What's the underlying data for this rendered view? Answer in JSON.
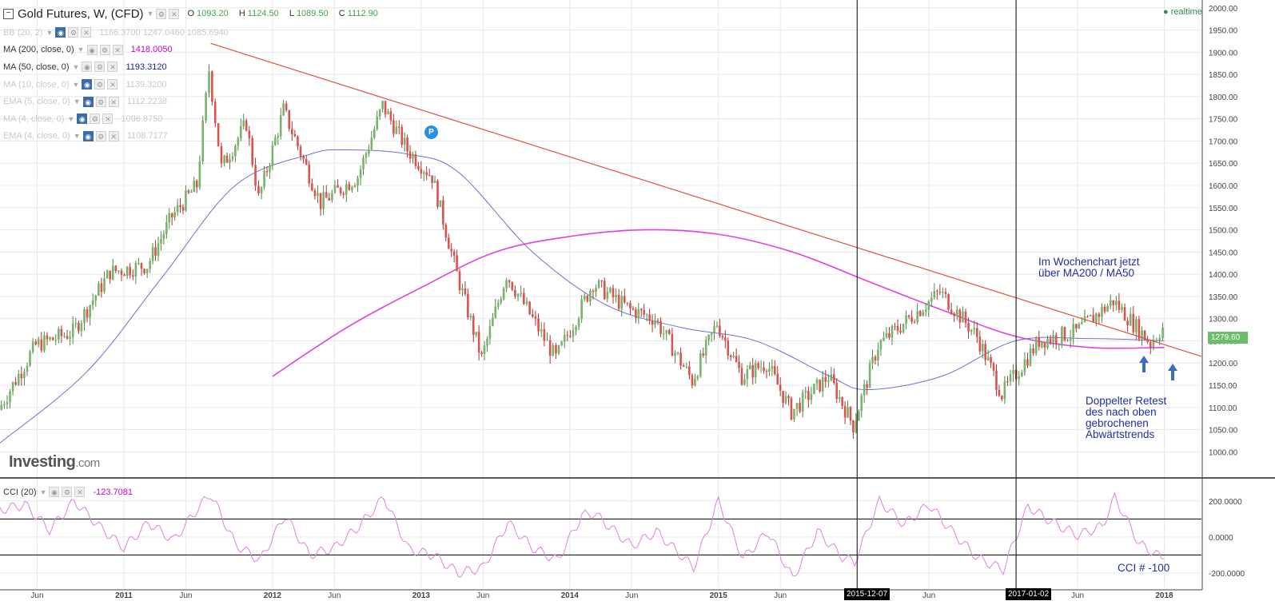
{
  "header": {
    "title": "Gold Futures, W, (CFD)",
    "ohlc": [
      {
        "label": "O",
        "value": "1093.20"
      },
      {
        "label": "H",
        "value": "1124.50"
      },
      {
        "label": "L",
        "value": "1089.50"
      },
      {
        "label": "C",
        "value": "1112.90"
      }
    ],
    "realtime": "realtime"
  },
  "indicators": [
    {
      "label": "BB (20, 2)",
      "values": "1166.3700 1247.0460 1085.6940",
      "dim": true
    },
    {
      "label": "MA (200, close, 0)",
      "values": "1418.0050",
      "dim": false,
      "color": "#cc00cc"
    },
    {
      "label": "MA (50, close, 0)",
      "values": "1193.3120",
      "dim": false,
      "color": "#1a1aa0"
    },
    {
      "label": "MA (10, close, 0)",
      "values": "1139.3200",
      "dim": true
    },
    {
      "label": "EMA (5, close, 0)",
      "values": "1112.2238",
      "dim": true
    },
    {
      "label": "MA (4, close, 0)",
      "values": "1096.8750",
      "dim": true
    },
    {
      "label": "EMA (4, close, 0)",
      "values": "1108.7177",
      "dim": true
    }
  ],
  "cci_legend": {
    "label": "CCI (20)",
    "value": "-123.7081"
  },
  "logo": {
    "main": "Investing",
    "suffix": ".com"
  },
  "annotations": {
    "weekly": [
      "Im Wochenchart jetzt",
      "über MA200 / MA50"
    ],
    "retest": [
      "Doppelter Retest",
      "des nach oben",
      "gebrochenen",
      "Abwärtstrends"
    ],
    "cci": "CCI # -100",
    "marker": "P"
  },
  "price_tag": "1279.60",
  "date_tags": [
    "2015-12-07",
    "2017-01-02"
  ],
  "colors": {
    "up": "#78b36b",
    "down": "#d9534f",
    "ma200": "#e040e0",
    "ma50": "#6f6fcf",
    "trendline": "#e0503c",
    "cci": "#e080e0",
    "grid": "#e8e8e8"
  },
  "chart_data": {
    "type": "candlestick",
    "title": "Gold Futures, W, (CFD)",
    "y_axis": {
      "ylim": [
        970,
        2005
      ],
      "ticks": [
        1000,
        1050,
        1100,
        1150,
        1200,
        1250,
        1300,
        1350,
        1400,
        1450,
        1500,
        1550,
        1600,
        1650,
        1700,
        1750,
        1800,
        1850,
        1900,
        1950,
        2000
      ],
      "tick_labels": [
        "1000.00",
        "1050.00",
        "1100.00",
        "1150.00",
        "1200.00",
        "1250.00",
        "1300.00",
        "1350.00",
        "1400.00",
        "1450.00",
        "1500.00",
        "1550.00",
        "1600.00",
        "1650.00",
        "1700.00",
        "1750.00",
        "1800.00",
        "1850.00",
        "1900.00",
        "1950.00",
        "2000.00"
      ]
    },
    "x_axis": {
      "range": [
        "2010-03",
        "2018-04"
      ],
      "ticks": [
        {
          "date": "2010-06",
          "label": "Jun"
        },
        {
          "date": "2011-01",
          "label": "2011"
        },
        {
          "date": "2011-06",
          "label": "Jun"
        },
        {
          "date": "2012-01",
          "label": "2012"
        },
        {
          "date": "2012-06",
          "label": "Jun"
        },
        {
          "date": "2013-01",
          "label": "2013"
        },
        {
          "date": "2013-06",
          "label": "Jun"
        },
        {
          "date": "2014-01",
          "label": "2014"
        },
        {
          "date": "2014-06",
          "label": "Jun"
        },
        {
          "date": "2015-01",
          "label": "2015"
        },
        {
          "date": "2015-06",
          "label": "Jun"
        },
        {
          "date": "2016-06",
          "label": "Jun"
        },
        {
          "date": "2017-06",
          "label": "Jun"
        },
        {
          "date": "2018-01",
          "label": "2018"
        }
      ]
    },
    "price_path": [
      [
        "2010-03",
        1095
      ],
      [
        "2010-06",
        1240
      ],
      [
        "2010-09",
        1270
      ],
      [
        "2010-12",
        1405
      ],
      [
        "2011-03",
        1420
      ],
      [
        "2011-05",
        1530
      ],
      [
        "2011-07",
        1600
      ],
      [
        "2011-08",
        1860
      ],
      [
        "2011-09",
        1640
      ],
      [
        "2011-11",
        1740
      ],
      [
        "2011-12",
        1570
      ],
      [
        "2012-02",
        1770
      ],
      [
        "2012-05",
        1560
      ],
      [
        "2012-08",
        1620
      ],
      [
        "2012-10",
        1780
      ],
      [
        "2012-12",
        1680
      ],
      [
        "2013-02",
        1620
      ],
      [
        "2013-04",
        1400
      ],
      [
        "2013-06",
        1210
      ],
      [
        "2013-08",
        1400
      ],
      [
        "2013-12",
        1210
      ],
      [
        "2014-03",
        1380
      ],
      [
        "2014-06",
        1320
      ],
      [
        "2014-08",
        1300
      ],
      [
        "2014-11",
        1160
      ],
      [
        "2015-01",
        1290
      ],
      [
        "2015-03",
        1170
      ],
      [
        "2015-05",
        1200
      ],
      [
        "2015-07",
        1090
      ],
      [
        "2015-10",
        1170
      ],
      [
        "2015-12",
        1060
      ],
      [
        "2016-02",
        1240
      ],
      [
        "2016-07",
        1360
      ],
      [
        "2016-10",
        1260
      ],
      [
        "2016-12",
        1130
      ],
      [
        "2017-03",
        1250
      ],
      [
        "2017-06",
        1270
      ],
      [
        "2017-09",
        1340
      ],
      [
        "2017-12",
        1245
      ],
      [
        "2018-01",
        1280
      ]
    ],
    "ma200": [
      [
        "2012-01",
        1170
      ],
      [
        "2012-07",
        1280
      ],
      [
        "2013-01",
        1370
      ],
      [
        "2013-07",
        1450
      ],
      [
        "2014-01",
        1485
      ],
      [
        "2014-07",
        1500
      ],
      [
        "2015-01",
        1490
      ],
      [
        "2015-07",
        1450
      ],
      [
        "2016-01",
        1385
      ],
      [
        "2016-07",
        1320
      ],
      [
        "2017-01",
        1260
      ],
      [
        "2017-07",
        1235
      ],
      [
        "2018-01",
        1235
      ]
    ],
    "ma50": [
      [
        "2010-03",
        1020
      ],
      [
        "2010-10",
        1180
      ],
      [
        "2011-04",
        1390
      ],
      [
        "2011-10",
        1600
      ],
      [
        "2012-04",
        1670
      ],
      [
        "2012-07",
        1680
      ],
      [
        "2012-12",
        1670
      ],
      [
        "2013-04",
        1630
      ],
      [
        "2013-10",
        1450
      ],
      [
        "2014-04",
        1330
      ],
      [
        "2014-10",
        1280
      ],
      [
        "2015-04",
        1250
      ],
      [
        "2015-10",
        1170
      ],
      [
        "2016-01",
        1140
      ],
      [
        "2016-07",
        1170
      ],
      [
        "2017-01",
        1250
      ],
      [
        "2017-07",
        1255
      ],
      [
        "2018-01",
        1250
      ]
    ],
    "trendline": {
      "start": [
        "2011-08",
        1920
      ],
      "end": [
        "2018-04",
        1215
      ]
    },
    "vertical_markers": [
      "2015-12-07",
      "2017-01-02"
    ],
    "last_price": 1279.6,
    "cci": {
      "title": "CCI (20)",
      "ylim": [
        -280,
        310
      ],
      "ticks": [
        200,
        0,
        -200
      ],
      "tick_labels": [
        "200.0000",
        "0.0000",
        "-200.0000"
      ],
      "bands": [
        100,
        -100
      ],
      "path": [
        [
          "2010-03",
          150
        ],
        [
          "2010-05",
          180
        ],
        [
          "2010-07",
          40
        ],
        [
          "2010-09",
          200
        ],
        [
          "2010-11",
          60
        ],
        [
          "2011-01",
          -60
        ],
        [
          "2011-03",
          80
        ],
        [
          "2011-05",
          -20
        ],
        [
          "2011-07",
          160
        ],
        [
          "2011-08",
          240
        ],
        [
          "2011-10",
          -40
        ],
        [
          "2011-12",
          -130
        ],
        [
          "2012-02",
          120
        ],
        [
          "2012-04",
          -100
        ],
        [
          "2012-06",
          -60
        ],
        [
          "2012-08",
          60
        ],
        [
          "2012-10",
          220
        ],
        [
          "2012-12",
          -70
        ],
        [
          "2013-02",
          -100
        ],
        [
          "2013-04",
          -200
        ],
        [
          "2013-06",
          -170
        ],
        [
          "2013-08",
          80
        ],
        [
          "2013-10",
          -60
        ],
        [
          "2013-12",
          -130
        ],
        [
          "2014-02",
          120
        ],
        [
          "2014-03",
          130
        ],
        [
          "2014-06",
          -50
        ],
        [
          "2014-08",
          30
        ],
        [
          "2014-11",
          -170
        ],
        [
          "2015-01",
          200
        ],
        [
          "2015-03",
          -120
        ],
        [
          "2015-05",
          30
        ],
        [
          "2015-07",
          -230
        ],
        [
          "2015-09",
          30
        ],
        [
          "2015-11",
          -110
        ],
        [
          "2015-12",
          -140
        ],
        [
          "2016-02",
          200
        ],
        [
          "2016-04",
          70
        ],
        [
          "2016-06",
          180
        ],
        [
          "2016-08",
          20
        ],
        [
          "2016-10",
          -120
        ],
        [
          "2016-12",
          -180
        ],
        [
          "2017-02",
          170
        ],
        [
          "2017-04",
          80
        ],
        [
          "2017-06",
          10
        ],
        [
          "2017-08",
          60
        ],
        [
          "2017-09",
          220
        ],
        [
          "2017-11",
          -40
        ],
        [
          "2018-01",
          -124
        ]
      ]
    }
  }
}
